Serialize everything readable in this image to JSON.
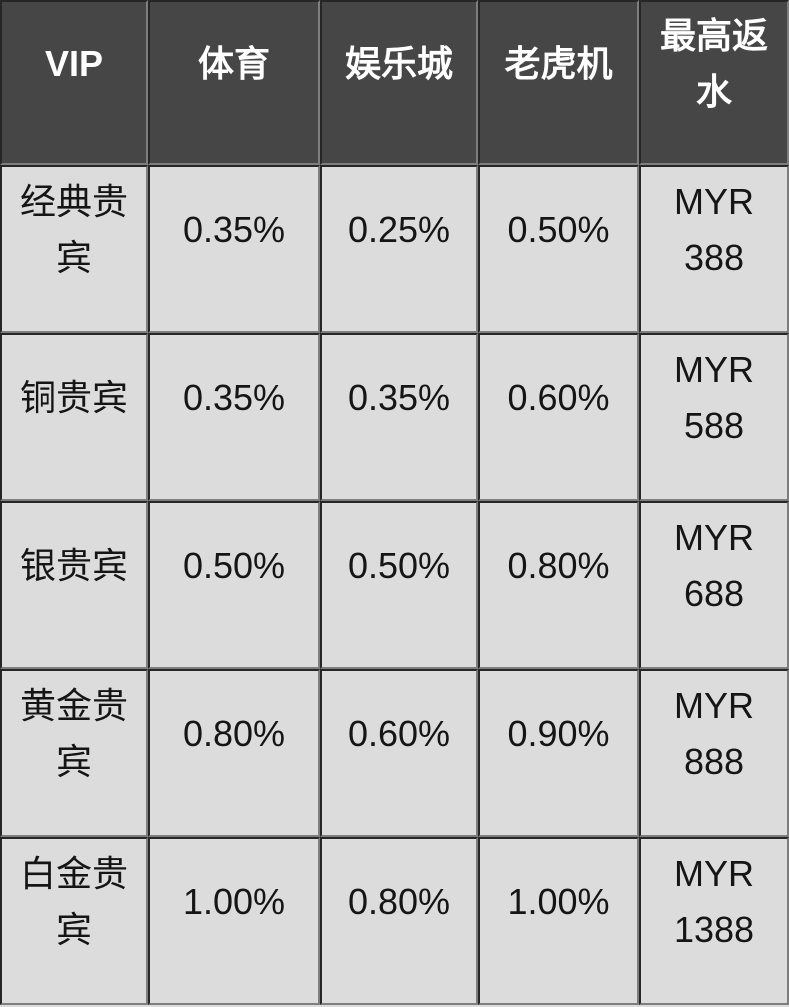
{
  "chart_data": {
    "type": "table",
    "columns": [
      "VIP",
      "体育",
      "娱乐城",
      "老虎机",
      "最高返水"
    ],
    "rows": [
      [
        "经典贵宾",
        "0.35%",
        "0.25%",
        "0.50%",
        "MYR 388"
      ],
      [
        "铜贵宾",
        "0.35%",
        "0.35%",
        "0.60%",
        "MYR 588"
      ],
      [
        "银贵宾",
        "0.50%",
        "0.50%",
        "0.80%",
        "MYR 688"
      ],
      [
        "黄金贵宾",
        "0.80%",
        "0.60%",
        "0.90%",
        "MYR 888"
      ],
      [
        "白金贵宾",
        "1.00%",
        "0.80%",
        "1.00%",
        "MYR 1388"
      ]
    ],
    "layout": {
      "grid": "on",
      "header_position": "top",
      "row_count": 5,
      "column_count": 5
    }
  },
  "colors": {
    "header_bg": "#464646",
    "header_text": "#ffffff",
    "cell_bg": "#dcdcdc",
    "cell_text": "#151515",
    "border_dark": "#262626",
    "border_light": "#7e7e7e"
  }
}
